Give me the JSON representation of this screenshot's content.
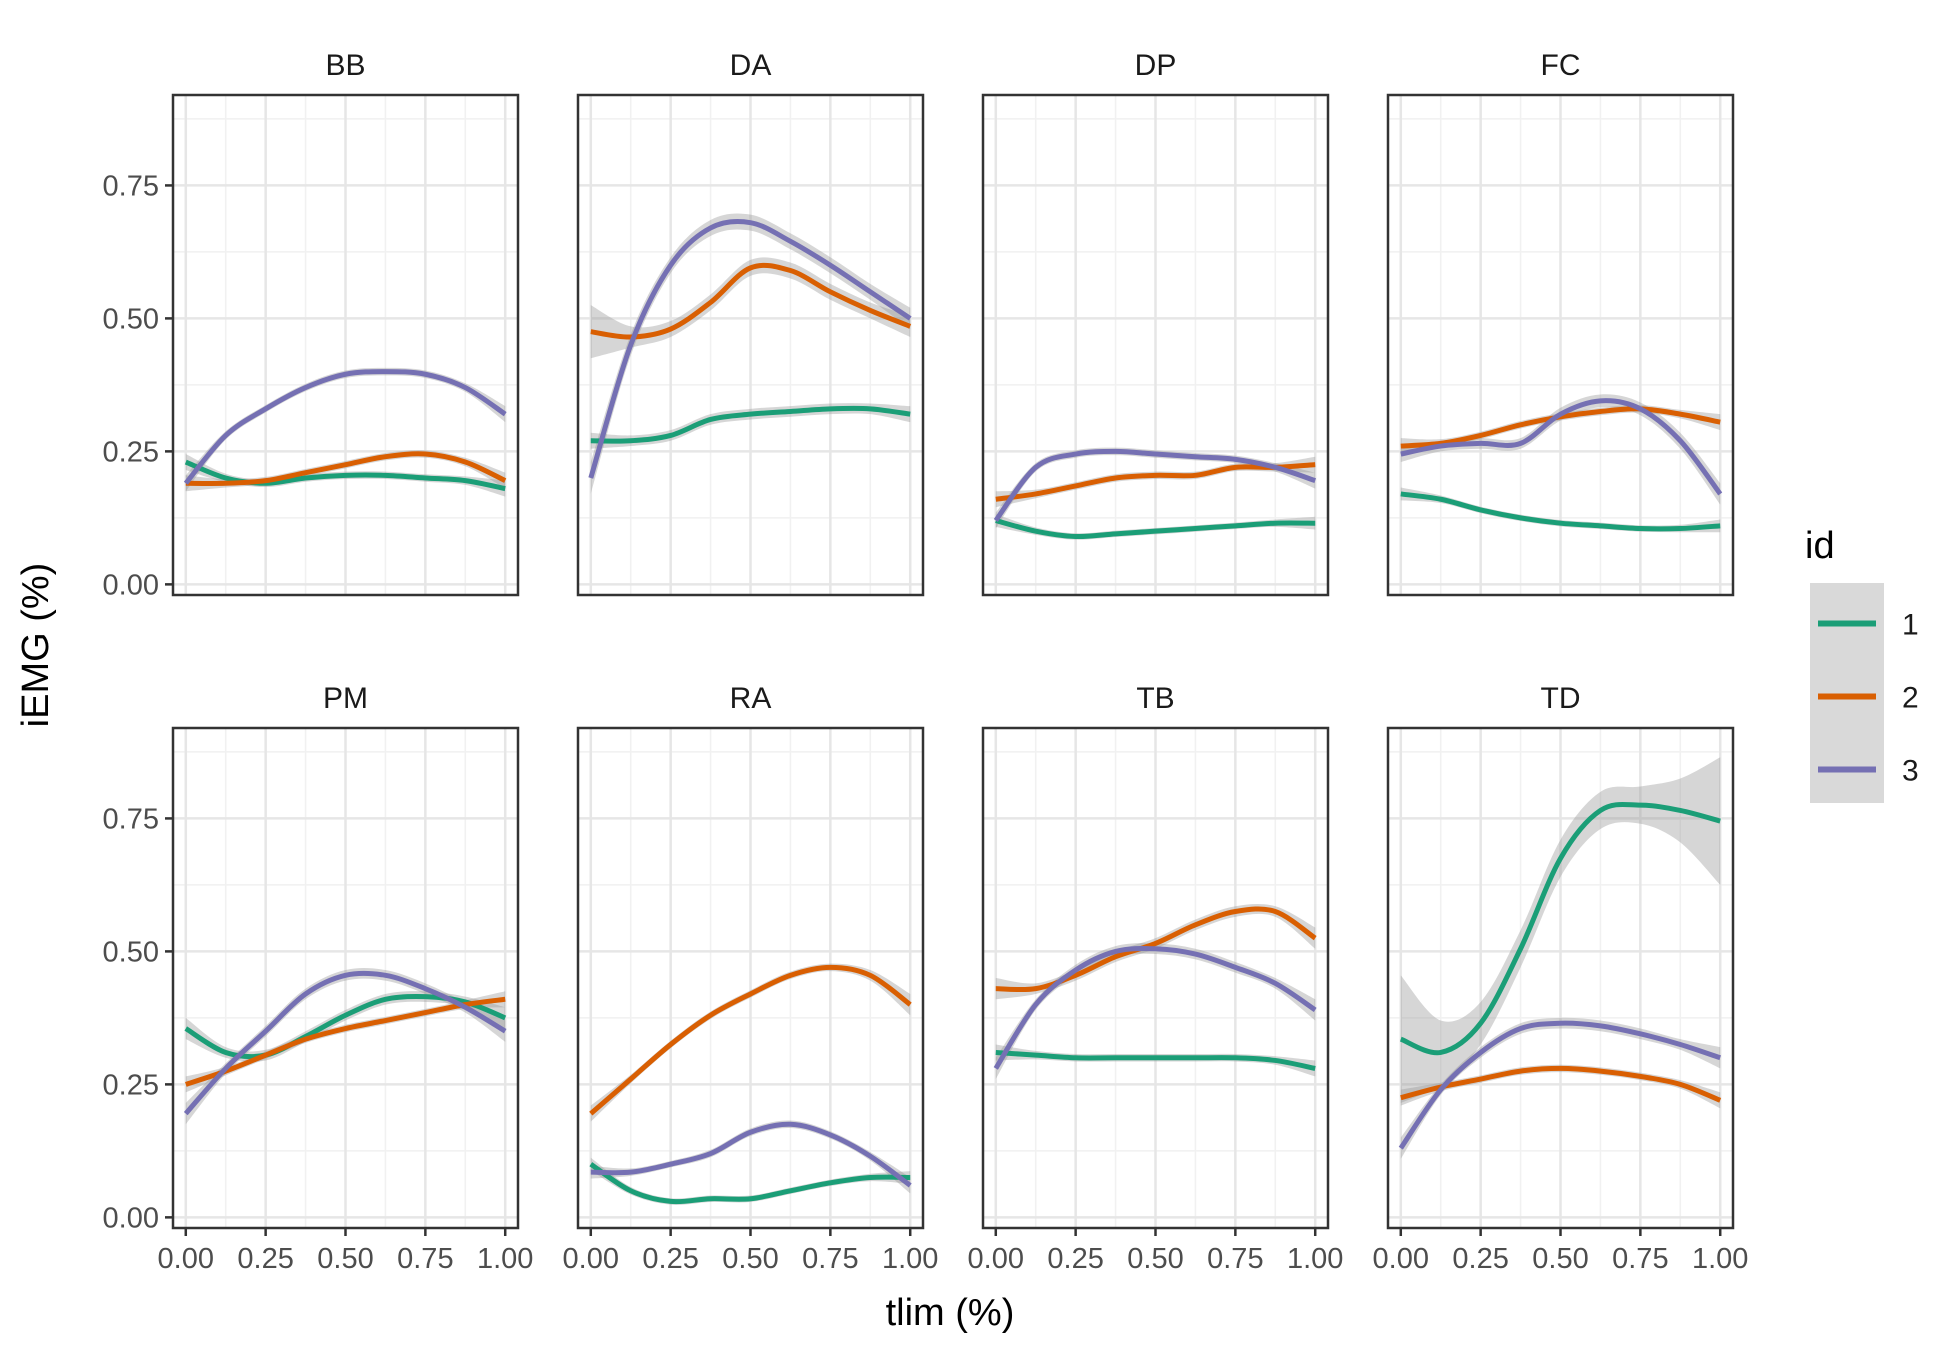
{
  "chart_data": {
    "type": "line",
    "layout": "facet-grid 2 rows x 4 columns, shared axes",
    "xlabel": "tlim (%)",
    "ylabel": "iEMG (%)",
    "xlim": [
      -0.04,
      1.04
    ],
    "ylim": [
      -0.02,
      0.92
    ],
    "x_ticks": [
      0.0,
      0.25,
      0.5,
      0.75,
      1.0
    ],
    "x_tick_labels": [
      "0.00",
      "0.25",
      "0.50",
      "0.75",
      "1.00"
    ],
    "y_ticks": [
      0.0,
      0.25,
      0.5,
      0.75
    ],
    "y_tick_labels": [
      "0.00",
      "0.25",
      "0.50",
      "0.75"
    ],
    "grid": true,
    "confidence_band": true,
    "legend": {
      "title": "id",
      "position": "right",
      "entries": [
        {
          "label": "1",
          "color": "#1b9e77"
        },
        {
          "label": "2",
          "color": "#d95f02"
        },
        {
          "label": "3",
          "color": "#7570b3"
        }
      ]
    },
    "x": [
      0.0,
      0.125,
      0.25,
      0.375,
      0.5,
      0.625,
      0.75,
      0.875,
      1.0
    ],
    "panels": [
      {
        "title": "BB",
        "series": [
          {
            "name": "1",
            "values": [
              0.23,
              0.2,
              0.19,
              0.2,
              0.205,
              0.205,
              0.2,
              0.195,
              0.18
            ],
            "band": [
              0.015,
              0.008,
              0.007,
              0.007,
              0.007,
              0.007,
              0.007,
              0.008,
              0.015
            ]
          },
          {
            "name": "2",
            "values": [
              0.19,
              0.19,
              0.195,
              0.21,
              0.225,
              0.24,
              0.245,
              0.23,
              0.195
            ],
            "band": [
              0.015,
              0.008,
              0.007,
              0.007,
              0.007,
              0.007,
              0.007,
              0.008,
              0.015
            ]
          },
          {
            "name": "3",
            "values": [
              0.19,
              0.28,
              0.33,
              0.37,
              0.395,
              0.4,
              0.395,
              0.37,
              0.32
            ],
            "band": [
              0.015,
              0.008,
              0.007,
              0.007,
              0.007,
              0.007,
              0.007,
              0.008,
              0.015
            ]
          }
        ]
      },
      {
        "title": "DA",
        "series": [
          {
            "name": "1",
            "values": [
              0.27,
              0.27,
              0.28,
              0.31,
              0.32,
              0.325,
              0.33,
              0.33,
              0.32
            ],
            "band": [
              0.015,
              0.01,
              0.01,
              0.01,
              0.01,
              0.01,
              0.01,
              0.01,
              0.015
            ]
          },
          {
            "name": "2",
            "values": [
              0.475,
              0.465,
              0.48,
              0.53,
              0.595,
              0.59,
              0.55,
              0.515,
              0.485
            ],
            "band": [
              0.05,
              0.02,
              0.015,
              0.015,
              0.015,
              0.015,
              0.015,
              0.015,
              0.02
            ]
          },
          {
            "name": "3",
            "values": [
              0.2,
              0.45,
              0.6,
              0.67,
              0.68,
              0.645,
              0.6,
              0.55,
              0.5
            ],
            "band": [
              0.03,
              0.02,
              0.015,
              0.015,
              0.015,
              0.015,
              0.015,
              0.015,
              0.02
            ]
          }
        ]
      },
      {
        "title": "DP",
        "series": [
          {
            "name": "1",
            "values": [
              0.12,
              0.1,
              0.09,
              0.095,
              0.1,
              0.105,
              0.11,
              0.115,
              0.115
            ],
            "band": [
              0.012,
              0.007,
              0.006,
              0.006,
              0.006,
              0.006,
              0.006,
              0.007,
              0.012
            ]
          },
          {
            "name": "2",
            "values": [
              0.16,
              0.17,
              0.185,
              0.2,
              0.205,
              0.205,
              0.22,
              0.22,
              0.225
            ],
            "band": [
              0.015,
              0.008,
              0.007,
              0.007,
              0.007,
              0.007,
              0.007,
              0.008,
              0.015
            ]
          },
          {
            "name": "3",
            "values": [
              0.12,
              0.22,
              0.245,
              0.25,
              0.245,
              0.24,
              0.235,
              0.22,
              0.195
            ],
            "band": [
              0.015,
              0.008,
              0.007,
              0.007,
              0.007,
              0.007,
              0.007,
              0.008,
              0.015
            ]
          }
        ]
      },
      {
        "title": "FC",
        "series": [
          {
            "name": "1",
            "values": [
              0.17,
              0.16,
              0.14,
              0.125,
              0.115,
              0.11,
              0.105,
              0.105,
              0.11
            ],
            "band": [
              0.012,
              0.007,
              0.006,
              0.006,
              0.006,
              0.006,
              0.006,
              0.007,
              0.012
            ]
          },
          {
            "name": "2",
            "values": [
              0.26,
              0.265,
              0.28,
              0.3,
              0.315,
              0.325,
              0.33,
              0.32,
              0.305
            ],
            "band": [
              0.015,
              0.008,
              0.007,
              0.007,
              0.007,
              0.007,
              0.007,
              0.008,
              0.015
            ]
          },
          {
            "name": "3",
            "values": [
              0.245,
              0.26,
              0.265,
              0.265,
              0.32,
              0.345,
              0.33,
              0.27,
              0.17
            ],
            "band": [
              0.015,
              0.01,
              0.01,
              0.01,
              0.012,
              0.012,
              0.012,
              0.015,
              0.02
            ]
          }
        ]
      },
      {
        "title": "PM",
        "series": [
          {
            "name": "1",
            "values": [
              0.355,
              0.31,
              0.305,
              0.34,
              0.38,
              0.41,
              0.415,
              0.405,
              0.375
            ],
            "band": [
              0.02,
              0.01,
              0.01,
              0.01,
              0.01,
              0.01,
              0.01,
              0.01,
              0.02
            ]
          },
          {
            "name": "2",
            "values": [
              0.25,
              0.275,
              0.305,
              0.335,
              0.355,
              0.37,
              0.385,
              0.4,
              0.41
            ],
            "band": [
              0.015,
              0.008,
              0.007,
              0.007,
              0.007,
              0.007,
              0.007,
              0.008,
              0.015
            ]
          },
          {
            "name": "3",
            "values": [
              0.195,
              0.28,
              0.35,
              0.42,
              0.455,
              0.455,
              0.43,
              0.395,
              0.35
            ],
            "band": [
              0.02,
              0.01,
              0.01,
              0.01,
              0.01,
              0.01,
              0.01,
              0.01,
              0.02
            ]
          }
        ]
      },
      {
        "title": "RA",
        "series": [
          {
            "name": "1",
            "values": [
              0.1,
              0.05,
              0.03,
              0.035,
              0.035,
              0.05,
              0.065,
              0.075,
              0.075
            ],
            "band": [
              0.012,
              0.007,
              0.006,
              0.006,
              0.006,
              0.006,
              0.006,
              0.007,
              0.012
            ]
          },
          {
            "name": "2",
            "values": [
              0.195,
              0.26,
              0.325,
              0.38,
              0.42,
              0.455,
              0.47,
              0.455,
              0.4
            ],
            "band": [
              0.015,
              0.008,
              0.007,
              0.007,
              0.007,
              0.007,
              0.007,
              0.01,
              0.02
            ]
          },
          {
            "name": "3",
            "values": [
              0.085,
              0.085,
              0.1,
              0.12,
              0.16,
              0.175,
              0.155,
              0.115,
              0.06
            ],
            "band": [
              0.012,
              0.007,
              0.006,
              0.007,
              0.007,
              0.007,
              0.007,
              0.008,
              0.015
            ]
          }
        ]
      },
      {
        "title": "TB",
        "series": [
          {
            "name": "1",
            "values": [
              0.31,
              0.305,
              0.3,
              0.3,
              0.3,
              0.3,
              0.3,
              0.295,
              0.28
            ],
            "band": [
              0.015,
              0.008,
              0.007,
              0.007,
              0.007,
              0.007,
              0.007,
              0.008,
              0.015
            ]
          },
          {
            "name": "2",
            "values": [
              0.43,
              0.43,
              0.455,
              0.49,
              0.515,
              0.55,
              0.575,
              0.575,
              0.525
            ],
            "band": [
              0.02,
              0.01,
              0.01,
              0.01,
              0.01,
              0.01,
              0.01,
              0.01,
              0.02
            ]
          },
          {
            "name": "3",
            "values": [
              0.28,
              0.4,
              0.465,
              0.5,
              0.505,
              0.495,
              0.47,
              0.44,
              0.39
            ],
            "band": [
              0.02,
              0.01,
              0.01,
              0.01,
              0.01,
              0.01,
              0.01,
              0.01,
              0.02
            ]
          }
        ]
      },
      {
        "title": "TD",
        "series": [
          {
            "name": "1",
            "values": [
              0.335,
              0.31,
              0.365,
              0.505,
              0.675,
              0.765,
              0.775,
              0.765,
              0.745
            ],
            "band": [
              0.12,
              0.06,
              0.04,
              0.035,
              0.035,
              0.035,
              0.035,
              0.06,
              0.12
            ]
          },
          {
            "name": "2",
            "values": [
              0.225,
              0.245,
              0.26,
              0.275,
              0.28,
              0.275,
              0.265,
              0.25,
              0.22
            ],
            "band": [
              0.015,
              0.008,
              0.007,
              0.007,
              0.007,
              0.007,
              0.007,
              0.008,
              0.015
            ]
          },
          {
            "name": "3",
            "values": [
              0.13,
              0.24,
              0.31,
              0.355,
              0.365,
              0.36,
              0.345,
              0.325,
              0.3
            ],
            "band": [
              0.02,
              0.01,
              0.01,
              0.01,
              0.01,
              0.01,
              0.01,
              0.01,
              0.02
            ]
          }
        ]
      }
    ]
  }
}
